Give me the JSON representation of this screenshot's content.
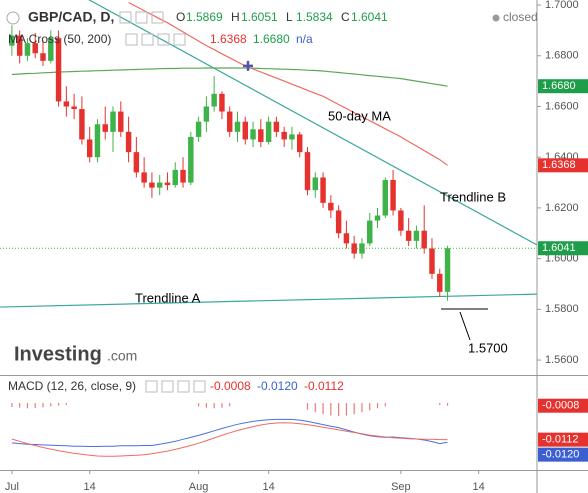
{
  "chart_data": {
    "type": "candlestick",
    "title": "GBP/CAD, D,",
    "status": "closed",
    "ohlc_legend": {
      "labels": [
        "O",
        "H",
        "L",
        "C"
      ],
      "values": [
        "1.5869",
        "1.6051",
        "1.5834",
        "1.6041"
      ],
      "color": "#1e9e4a"
    },
    "categories": [
      "Jul",
      null,
      null,
      null,
      null,
      null,
      null,
      null,
      null,
      null,
      "14",
      null,
      null,
      null,
      null,
      null,
      null,
      null,
      null,
      null,
      null,
      null,
      null,
      null,
      "Aug",
      null,
      null,
      null,
      null,
      null,
      null,
      null,
      null,
      "14",
      null,
      null,
      null,
      null,
      null,
      null,
      null,
      null,
      null,
      null,
      null,
      null,
      null,
      null,
      null,
      null,
      "Sep",
      null,
      null,
      null,
      null,
      null,
      null,
      null,
      null,
      null,
      "14",
      null,
      null,
      null,
      null,
      null,
      null,
      null
    ],
    "open": [
      1.684,
      1.688,
      1.68,
      1.685,
      1.681,
      1.678,
      1.687,
      1.662,
      1.66,
      1.659,
      1.647,
      1.64,
      1.653,
      1.65,
      1.658,
      1.65,
      1.642,
      1.634,
      1.63,
      1.628,
      1.63,
      1.629,
      1.635,
      1.63,
      1.648,
      1.654,
      1.66,
      1.665,
      1.658,
      1.65,
      1.654,
      1.647,
      1.651,
      1.646,
      1.654,
      1.65,
      1.647,
      1.649,
      1.642,
      1.627,
      1.632,
      1.622,
      1.619,
      1.61,
      1.606,
      1.602,
      1.606,
      1.615,
      1.617,
      1.631,
      1.619,
      1.611,
      1.607,
      1.611,
      1.604,
      1.594,
      1.5869,
      null,
      null,
      null,
      null,
      null,
      null,
      null,
      null,
      null,
      null,
      null
    ],
    "high": [
      1.692,
      1.69,
      1.687,
      1.689,
      1.686,
      1.69,
      1.69,
      1.668,
      1.665,
      1.664,
      1.652,
      1.655,
      1.66,
      1.66,
      1.662,
      1.656,
      1.648,
      1.64,
      1.634,
      1.633,
      1.634,
      1.638,
      1.64,
      1.65,
      1.656,
      1.664,
      1.672,
      1.666,
      1.66,
      1.658,
      1.656,
      1.654,
      1.655,
      1.656,
      1.656,
      1.652,
      1.652,
      1.65,
      1.644,
      1.634,
      1.634,
      1.625,
      1.621,
      1.615,
      1.609,
      1.608,
      1.618,
      1.62,
      1.632,
      1.635,
      1.62,
      1.616,
      1.613,
      1.621,
      1.608,
      1.596,
      1.6051,
      null,
      null,
      null,
      null,
      null,
      null,
      null,
      null,
      null,
      null,
      null
    ],
    "low": [
      1.68,
      1.677,
      1.678,
      1.679,
      1.676,
      1.677,
      1.66,
      1.656,
      1.655,
      1.645,
      1.638,
      1.638,
      1.647,
      1.642,
      1.648,
      1.638,
      1.632,
      1.628,
      1.624,
      1.625,
      1.627,
      1.628,
      1.628,
      1.629,
      1.646,
      1.65,
      1.658,
      1.655,
      1.648,
      1.646,
      1.645,
      1.644,
      1.644,
      1.645,
      1.648,
      1.644,
      1.643,
      1.64,
      1.625,
      1.624,
      1.62,
      1.616,
      1.608,
      1.604,
      1.6,
      1.6,
      1.605,
      1.612,
      1.616,
      1.617,
      1.609,
      1.605,
      1.604,
      1.602,
      1.592,
      1.585,
      1.5834,
      null,
      null,
      null,
      null,
      null,
      null,
      null,
      null,
      null,
      null,
      null
    ],
    "close": [
      1.688,
      1.68,
      1.685,
      1.681,
      1.678,
      1.687,
      1.662,
      1.66,
      1.659,
      1.647,
      1.64,
      1.653,
      1.65,
      1.658,
      1.65,
      1.642,
      1.634,
      1.63,
      1.628,
      1.63,
      1.629,
      1.635,
      1.63,
      1.648,
      1.654,
      1.66,
      1.665,
      1.658,
      1.65,
      1.654,
      1.647,
      1.651,
      1.646,
      1.654,
      1.65,
      1.647,
      1.649,
      1.642,
      1.627,
      1.632,
      1.622,
      1.619,
      1.61,
      1.606,
      1.602,
      1.606,
      1.615,
      1.617,
      1.631,
      1.619,
      1.611,
      1.607,
      1.611,
      1.604,
      1.594,
      1.5869,
      1.6041,
      null,
      null,
      null,
      null,
      null,
      null,
      null,
      null,
      null,
      null,
      null
    ],
    "up_color": "#3fb34a",
    "down_color": "#e5322e",
    "ylim": [
      1.5541,
      1.702
    ],
    "yticks": [
      {
        "value": 1.7,
        "label": "1.7000"
      },
      {
        "value": 1.68,
        "label": "1.6800"
      },
      {
        "value": 1.66,
        "label": "1.6600"
      },
      {
        "value": 1.64,
        "label": "1.6400"
      },
      {
        "value": 1.62,
        "label": "1.6200"
      },
      {
        "value": 1.6,
        "label": "1.6000"
      },
      {
        "value": 1.58,
        "label": "1.5800"
      },
      {
        "value": 1.56,
        "label": "1.5600"
      }
    ],
    "indicator": {
      "name": "MA Cross (50, 200)",
      "values": [
        "1.6368",
        "1.6680",
        "n/a"
      ],
      "colors": [
        "#e5322e",
        "#1e9e4a",
        "#3b5fd0"
      ]
    },
    "series": [
      {
        "name": "50-day MA",
        "color": "#f06a62",
        "values": [
          null,
          null,
          null,
          null,
          null,
          null,
          null,
          null,
          null,
          null,
          null,
          null,
          null,
          null,
          null,
          1.701,
          1.6994,
          1.6978,
          1.6962,
          1.6946,
          1.693,
          1.6912,
          1.6894,
          1.6876,
          1.6858,
          1.684,
          1.6824,
          1.6808,
          1.6792,
          1.6776,
          1.676,
          1.6748,
          1.6736,
          1.6724,
          1.6712,
          1.67,
          1.6688,
          1.6676,
          1.6664,
          1.6652,
          1.664,
          1.6624,
          1.6608,
          1.6592,
          1.6576,
          1.656,
          1.6544,
          1.6528,
          1.6512,
          1.6496,
          1.648,
          1.6462,
          1.6444,
          1.6426,
          1.6408,
          1.639,
          1.6368,
          null,
          null,
          null,
          null,
          null,
          null,
          null,
          null,
          null,
          null,
          null
        ]
      },
      {
        "color": "#5aa85a",
        "values": [
          1.6726,
          1.6728,
          1.673,
          1.6731,
          1.6733,
          1.6734,
          1.6736,
          1.6737,
          1.6738,
          1.6739,
          1.674,
          1.6741,
          1.6742,
          1.6743,
          1.6744,
          1.6745,
          1.6746,
          1.6747,
          1.6748,
          1.6749,
          1.675,
          1.675,
          1.6751,
          1.6751,
          1.6751,
          1.6752,
          1.6752,
          1.6752,
          1.6752,
          1.6752,
          1.6752,
          1.6751,
          1.675,
          1.6749,
          1.6748,
          1.6747,
          1.6746,
          1.6745,
          1.6743,
          1.6742,
          1.674,
          1.6737,
          1.6734,
          1.6731,
          1.6728,
          1.6725,
          1.6722,
          1.6719,
          1.6716,
          1.6713,
          1.671,
          1.6705,
          1.67,
          1.6695,
          1.669,
          1.6685,
          1.668,
          null,
          null,
          null,
          null,
          null,
          null,
          null,
          null,
          null,
          null,
          null
        ]
      }
    ],
    "cross_marker": {
      "value": 1.676,
      "color": "#5b4fa8"
    },
    "trendlines": [
      {
        "name": "Trendline A",
        "values": [
          1.5809,
          1.586
        ]
      },
      {
        "name": "Trendline B",
        "values": [
          1.7213,
          1.6054
        ]
      }
    ],
    "trendline_color": "#3aa89a",
    "annotation": "1.5700",
    "price_tags": [
      {
        "value": 1.668,
        "label": "1.6680",
        "color": "#1e9e4a"
      },
      {
        "value": 1.6368,
        "label": "1.6368",
        "color": "#e5322e"
      },
      {
        "value": 1.6041,
        "label": "1.6041",
        "color": "#1e9e4a"
      }
    ],
    "brand": {
      "name": "Investing",
      "suffix": ".com"
    },
    "macd": {
      "name": "MACD (12, 26, close, 9)",
      "values": [
        "-0.0008",
        "-0.0120",
        "-0.0112"
      ],
      "colors": [
        "#e5322e",
        "#3b5fd0",
        "#e5322e"
      ],
      "ylim": [
        -0.0205,
        0.0083
      ],
      "series": [
        {
          "color": "#4a6fe0",
          "values": [
            -0.0122,
            -0.0124,
            -0.0126,
            -0.0127,
            -0.0128,
            -0.0129,
            -0.013,
            -0.0131,
            -0.0132,
            -0.0132,
            -0.0133,
            -0.0133,
            -0.0132,
            -0.0132,
            -0.0131,
            -0.0131,
            -0.0131,
            -0.013,
            -0.013,
            -0.0126,
            -0.0122,
            -0.0117,
            -0.0111,
            -0.0105,
            -0.0099,
            -0.0092,
            -0.0085,
            -0.0078,
            -0.0071,
            -0.0065,
            -0.006,
            -0.0056,
            -0.0053,
            -0.0051,
            -0.005,
            -0.005,
            -0.005,
            -0.0052,
            -0.0056,
            -0.0061,
            -0.0066,
            -0.0071,
            -0.0075,
            -0.0082,
            -0.0089,
            -0.0095,
            -0.01,
            -0.0103,
            -0.0105,
            -0.0104,
            -0.0106,
            -0.0108,
            -0.011,
            -0.0113,
            -0.0118,
            -0.0124,
            -0.012,
            null,
            null,
            null,
            null,
            null,
            null,
            null,
            null,
            null,
            null,
            null
          ]
        },
        {
          "color": "#f06a62",
          "values": [
            -0.011,
            -0.0117,
            -0.0124,
            -0.013,
            -0.0136,
            -0.0141,
            -0.0146,
            -0.015,
            -0.0154,
            -0.0157,
            -0.016,
            -0.0162,
            -0.0163,
            -0.0163,
            -0.0162,
            -0.0161,
            -0.016,
            -0.0158,
            -0.0155,
            -0.0151,
            -0.0147,
            -0.0142,
            -0.0136,
            -0.013,
            -0.0123,
            -0.0115,
            -0.0107,
            -0.0099,
            -0.0091,
            -0.0084,
            -0.0078,
            -0.0072,
            -0.0067,
            -0.0063,
            -0.0061,
            -0.006,
            -0.0061,
            -0.0063,
            -0.0066,
            -0.007,
            -0.0074,
            -0.0078,
            -0.0082,
            -0.0086,
            -0.009,
            -0.0094,
            -0.0098,
            -0.0101,
            -0.0104,
            -0.0106,
            -0.0108,
            -0.0109,
            -0.011,
            -0.0111,
            -0.0111,
            -0.0112,
            -0.0112,
            null,
            null,
            null,
            null,
            null,
            null,
            null,
            null,
            null,
            null,
            null
          ]
        }
      ],
      "histogram": {
        "color": "#ee7a74",
        "values": [
          -0.0012,
          -0.0014,
          -0.0016,
          -0.0015,
          -0.0013,
          -0.001,
          -0.0008,
          -0.0006,
          null,
          null,
          null,
          null,
          null,
          null,
          null,
          null,
          null,
          null,
          null,
          null,
          null,
          null,
          null,
          null,
          -0.001,
          -0.0014,
          -0.0016,
          -0.0014,
          -0.001,
          null,
          null,
          null,
          null,
          null,
          null,
          null,
          null,
          null,
          -0.002,
          -0.0028,
          -0.0034,
          -0.0038,
          -0.004,
          -0.0038,
          -0.0034,
          -0.0028,
          -0.0022,
          -0.0016,
          -0.001,
          null,
          null,
          null,
          null,
          null,
          null,
          -0.0006,
          -0.0008,
          null,
          null,
          null,
          null,
          null,
          null,
          null,
          null,
          null,
          null,
          null
        ]
      },
      "price_tags": [
        {
          "value": -0.0008,
          "label": "-0.0008",
          "color": "#e5322e"
        },
        {
          "value": -0.0112,
          "label": "-0.0112",
          "color": "#e5322e"
        },
        {
          "value": -0.012,
          "label": "-0.0120",
          "color": "#3b5fd0"
        }
      ]
    }
  }
}
